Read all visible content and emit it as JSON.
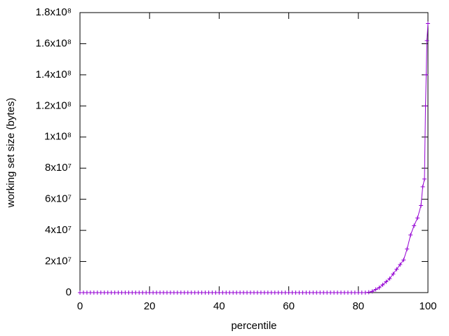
{
  "chart_data": {
    "type": "line",
    "xlabel": "percentile",
    "ylabel": "working set size (bytes)",
    "color": "#9400d3",
    "xlim": [
      0,
      100
    ],
    "xticks": [
      0,
      20,
      40,
      60,
      80,
      100
    ],
    "ylim": [
      0,
      180000000
    ],
    "yticks": [
      0,
      {
        "value": 20000000,
        "label": "2x10⁷"
      },
      {
        "value": 40000000,
        "label": "4x10⁷"
      },
      {
        "value": 60000000,
        "label": "6x10⁷"
      },
      {
        "value": 80000000,
        "label": "8x10⁷"
      },
      {
        "value": 100000000,
        "label": "1x10⁸"
      },
      {
        "value": 120000000,
        "label": "1.2x10⁸"
      },
      {
        "value": 140000000,
        "label": "1.4x10⁸"
      },
      {
        "value": 160000000,
        "label": "1.6x10⁸"
      },
      {
        "value": 180000000,
        "label": "1.8x10⁸"
      }
    ],
    "x": [
      0,
      1,
      2,
      3,
      4,
      5,
      6,
      7,
      8,
      9,
      10,
      11,
      12,
      13,
      14,
      15,
      16,
      17,
      18,
      19,
      20,
      21,
      22,
      23,
      24,
      25,
      26,
      27,
      28,
      29,
      30,
      31,
      32,
      33,
      34,
      35,
      36,
      37,
      38,
      39,
      40,
      41,
      42,
      43,
      44,
      45,
      46,
      47,
      48,
      49,
      50,
      51,
      52,
      53,
      54,
      55,
      56,
      57,
      58,
      59,
      60,
      61,
      62,
      63,
      64,
      65,
      66,
      67,
      68,
      69,
      70,
      71,
      72,
      73,
      74,
      75,
      76,
      77,
      78,
      79,
      80,
      81,
      82,
      83,
      84,
      85,
      86,
      87,
      88,
      89,
      90,
      91,
      92,
      93,
      94,
      95,
      96,
      97,
      98,
      98.5,
      99,
      99.3,
      99.5,
      99.7,
      100
    ],
    "values": [
      0,
      0,
      0,
      0,
      0,
      0,
      0,
      0,
      0,
      0,
      0,
      0,
      0,
      0,
      0,
      0,
      0,
      0,
      0,
      0,
      0,
      0,
      0,
      0,
      0,
      0,
      0,
      0,
      0,
      0,
      0,
      0,
      0,
      0,
      0,
      0,
      0,
      0,
      0,
      0,
      0,
      0,
      0,
      0,
      0,
      0,
      0,
      0,
      0,
      0,
      0,
      0,
      0,
      0,
      0,
      0,
      0,
      0,
      0,
      0,
      0,
      0,
      0,
      0,
      0,
      0,
      0,
      0,
      0,
      0,
      0,
      0,
      0,
      0,
      0,
      0,
      0,
      0,
      0,
      0,
      0,
      0,
      0,
      200000,
      800000,
      2000000,
      3200000,
      5000000,
      7000000,
      9000000,
      12000000,
      15000000,
      18000000,
      21000000,
      28000000,
      37000000,
      43000000,
      48000000,
      56000000,
      68000000,
      73000000,
      120000000,
      140000000,
      162000000,
      173000000
    ]
  }
}
